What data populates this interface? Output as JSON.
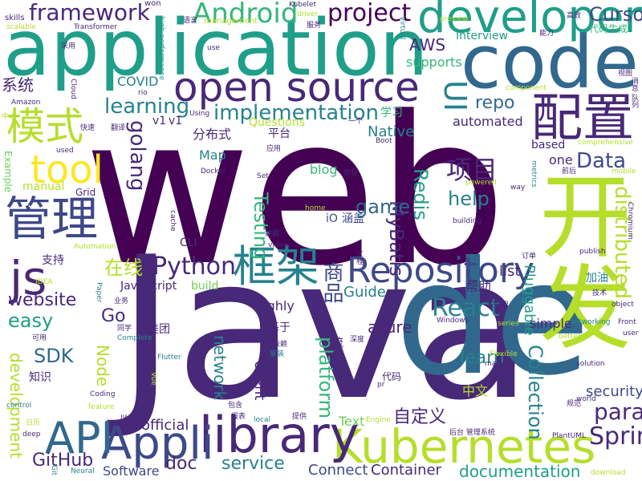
{
  "palette": {
    "deep_purple": "#440154",
    "indigo": "#482878",
    "slate_blue": "#3e4989",
    "blue_teal": "#31688e",
    "teal": "#26828e",
    "sea_green": "#1f9e89",
    "green": "#35b779",
    "lime": "#6ece58",
    "yellow_green": "#b5de2b",
    "yellow": "#fde725"
  },
  "words": [
    {
      "text": "web",
      "color": "deep_purple"
    },
    {
      "text": "Java",
      "color": "indigo"
    },
    {
      "text": "de",
      "color": "blue_teal"
    },
    {
      "text": "application",
      "color": "sea_green"
    },
    {
      "text": "code",
      "color": "blue_teal"
    },
    {
      "text": "开发",
      "color": "yellow_green"
    },
    {
      "text": "developer",
      "color": "sea_green"
    },
    {
      "text": "open source",
      "color": "indigo"
    },
    {
      "text": "配置",
      "color": "indigo"
    },
    {
      "text": "Repository",
      "color": "slate_blue"
    },
    {
      "text": "Kubernetes",
      "color": "yellow_green"
    },
    {
      "text": "library",
      "color": "indigo"
    },
    {
      "text": "Appli",
      "color": "slate_blue"
    },
    {
      "text": "API",
      "color": "blue_teal"
    },
    {
      "text": "管理",
      "color": "slate_blue"
    },
    {
      "text": "框架",
      "color": "teal"
    },
    {
      "text": "js",
      "color": "indigo"
    },
    {
      "text": "模式",
      "color": "yellow_green"
    },
    {
      "text": "tool",
      "color": "yellow"
    },
    {
      "text": "Android",
      "color": "green"
    },
    {
      "text": "framework",
      "color": "indigo"
    },
    {
      "text": "project",
      "color": "deep_purple"
    },
    {
      "text": "Curso",
      "color": "slate_blue"
    },
    {
      "text": "UI",
      "color": "teal"
    },
    {
      "text": "项目",
      "color": "indigo"
    },
    {
      "text": "Python",
      "color": "indigo"
    },
    {
      "text": "React",
      "color": "teal"
    },
    {
      "text": "Spring",
      "color": "indigo"
    },
    {
      "text": "para",
      "color": "indigo"
    },
    {
      "text": "distributed",
      "color": "yellow_green"
    },
    {
      "text": "Data",
      "color": "slate_blue"
    },
    {
      "text": "implementation",
      "color": "teal"
    },
    {
      "text": "learning",
      "color": "teal"
    },
    {
      "text": "golang",
      "color": "indigo"
    },
    {
      "text": "Redis",
      "color": "sea_green"
    },
    {
      "text": "MyBatis",
      "color": "indigo"
    },
    {
      "text": "Testing",
      "color": "green"
    },
    {
      "text": "商品",
      "color": "slate_blue"
    },
    {
      "text": "Collection",
      "color": "teal"
    },
    {
      "text": "platform",
      "color": "green"
    },
    {
      "text": "website",
      "color": "indigo"
    },
    {
      "text": "easy",
      "color": "sea_green"
    },
    {
      "text": "Go",
      "color": "indigo"
    },
    {
      "text": "SDK",
      "color": "blue_teal"
    },
    {
      "text": "在线",
      "color": "yellow_green"
    },
    {
      "text": "game",
      "color": "blue_teal"
    },
    {
      "text": "help",
      "color": "teal"
    },
    {
      "text": "repo",
      "color": "blue_teal"
    },
    {
      "text": "learn",
      "color": "teal"
    },
    {
      "text": "AWS",
      "color": "indigo"
    },
    {
      "text": "Interview",
      "color": "sea_green"
    },
    {
      "text": "supports",
      "color": "green"
    },
    {
      "text": "service",
      "color": "teal"
    },
    {
      "text": "GitHub",
      "color": "indigo"
    },
    {
      "text": "doc",
      "color": "indigo"
    },
    {
      "text": "network",
      "color": "teal"
    },
    {
      "text": "development",
      "color": "yellow_green"
    },
    {
      "text": "azure",
      "color": "indigo"
    },
    {
      "text": "Node",
      "color": "yellow_green"
    },
    {
      "text": "Pluggable",
      "color": "sea_green"
    },
    {
      "text": "security",
      "color": "slate_blue"
    },
    {
      "text": "documentation",
      "color": "sea_green"
    },
    {
      "text": "Connect",
      "color": "slate_blue"
    },
    {
      "text": "Container",
      "color": "indigo"
    },
    {
      "text": "Software",
      "color": "slate_blue"
    },
    {
      "text": "official",
      "color": "indigo"
    },
    {
      "text": "自定义",
      "color": "indigo"
    },
    {
      "text": "系统",
      "color": "indigo"
    },
    {
      "text": "COVID",
      "color": "teal"
    },
    {
      "text": "automated",
      "color": "indigo"
    },
    {
      "text": "Native",
      "color": "teal"
    },
    {
      "text": "Guide",
      "color": "teal"
    },
    {
      "text": "list",
      "color": "indigo"
    },
    {
      "text": "simple",
      "color": "indigo"
    },
    {
      "text": "highly",
      "color": "indigo"
    },
    {
      "text": "JavaScript",
      "color": "indigo"
    },
    {
      "text": "build",
      "color": "lime"
    },
    {
      "text": "client",
      "color": "indigo"
    },
    {
      "text": "帮助",
      "color": "indigo"
    },
    {
      "text": "中文",
      "color": "yellow_green"
    },
    {
      "text": "Text",
      "color": "lime"
    },
    {
      "text": "代码生成",
      "color": "green"
    },
    {
      "text": "分布式",
      "color": "indigo"
    },
    {
      "text": "blog",
      "color": "green"
    },
    {
      "text": "Map",
      "color": "teal"
    },
    {
      "text": "Questions",
      "color": "yellow_green"
    },
    {
      "text": "v1",
      "color": "indigo"
    },
    {
      "text": "v1",
      "color": "indigo"
    },
    {
      "text": "based",
      "color": "indigo"
    },
    {
      "text": "one",
      "color": "indigo"
    },
    {
      "text": "学习",
      "color": "green"
    },
    {
      "text": "平台",
      "color": "indigo"
    },
    {
      "text": "iO",
      "color": "slate_blue"
    },
    {
      "text": "涵盖",
      "color": "slate_blue"
    },
    {
      "text": "CLI",
      "color": "indigo"
    },
    {
      "text": "支持",
      "color": "indigo"
    },
    {
      "text": "加油",
      "color": "teal"
    },
    {
      "text": "manual",
      "color": "yellow_green"
    },
    {
      "text": "Grid",
      "color": "indigo"
    },
    {
      "text": "Example",
      "color": "lime"
    },
    {
      "text": "知识",
      "color": "indigo"
    },
    {
      "text": "美团",
      "color": "indigo"
    },
    {
      "text": "基于",
      "color": "indigo"
    },
    {
      "text": "流程",
      "color": "indigo"
    },
    {
      "text": "代码",
      "color": "indigo"
    },
    {
      "text": "skills",
      "color": "indigo"
    },
    {
      "text": "won",
      "color": "indigo"
    },
    {
      "text": "Transformer",
      "color": "indigo"
    },
    {
      "text": "Kubelet",
      "color": "indigo"
    },
    {
      "text": "driver",
      "color": "yellow_green"
    },
    {
      "text": "Virtual",
      "color": "teal"
    },
    {
      "text": "服务",
      "color": "indigo"
    },
    {
      "text": "management",
      "color": "yellow_green"
    },
    {
      "text": "高效",
      "color": "indigo"
    },
    {
      "text": "能力",
      "color": "indigo"
    },
    {
      "text": "语言",
      "color": "indigo"
    },
    {
      "text": "high performance",
      "color": "sea_green"
    },
    {
      "text": "scalable",
      "color": "yellow_green"
    },
    {
      "text": "采用",
      "color": "indigo"
    },
    {
      "text": "use",
      "color": "indigo"
    },
    {
      "text": "视图",
      "color": "indigo"
    },
    {
      "text": "消息 队列",
      "color": "indigo"
    },
    {
      "text": "Amazon",
      "color": "indigo"
    },
    {
      "text": "Cloud",
      "color": "indigo"
    },
    {
      "text": "rio",
      "color": "indigo"
    },
    {
      "text": "component",
      "color": "yellow_green"
    },
    {
      "text": "comprehensive",
      "color": "yellow_green"
    },
    {
      "text": "中心",
      "color": "yellow_green"
    },
    {
      "text": "快速",
      "color": "indigo"
    },
    {
      "text": "翻译",
      "color": "indigo"
    },
    {
      "text": "Using",
      "color": "indigo"
    },
    {
      "text": "一个",
      "color": "indigo"
    },
    {
      "text": "Boot",
      "color": "indigo"
    },
    {
      "text": "used",
      "color": "indigo"
    },
    {
      "text": "应用",
      "color": "indigo"
    },
    {
      "text": "Docker",
      "color": "indigo"
    },
    {
      "text": "依存",
      "color": "indigo"
    },
    {
      "text": "Set",
      "color": "indigo"
    },
    {
      "text": "powered",
      "color": "yellow_green"
    },
    {
      "text": "way",
      "color": "indigo"
    },
    {
      "text": "metrics",
      "color": "teal"
    },
    {
      "text": "mobile",
      "color": "yellow_green"
    },
    {
      "text": "前后",
      "color": "indigo"
    },
    {
      "text": "cache",
      "color": "indigo"
    },
    {
      "text": "home",
      "color": "yellow_green"
    },
    {
      "text": "数据",
      "color": "indigo"
    },
    {
      "text": "building",
      "color": "indigo"
    },
    {
      "text": "Chromium",
      "color": "indigo"
    },
    {
      "text": "video",
      "color": "indigo"
    },
    {
      "text": "publish",
      "color": "indigo"
    },
    {
      "text": "订单",
      "color": "indigo"
    },
    {
      "text": "Automation",
      "color": "yellow_green"
    },
    {
      "text": "IDEA",
      "color": "yellow_green"
    },
    {
      "text": "Paper",
      "color": "teal"
    },
    {
      "text": "deploy",
      "color": "indigo"
    },
    {
      "text": "技术",
      "color": "indigo"
    },
    {
      "text": "step",
      "color": "indigo"
    },
    {
      "text": "object",
      "color": "indigo"
    },
    {
      "text": "networking",
      "color": "teal"
    },
    {
      "text": "Front",
      "color": "indigo"
    },
    {
      "text": "user",
      "color": "indigo"
    },
    {
      "text": "Windows",
      "color": "indigo"
    },
    {
      "text": "series",
      "color": "yellow_green"
    },
    {
      "text": "better",
      "color": "yellow_green"
    },
    {
      "text": "同学",
      "color": "indigo"
    },
    {
      "text": "可用",
      "color": "indigo"
    },
    {
      "text": "Complete",
      "color": "teal"
    },
    {
      "text": "深度",
      "color": "indigo"
    },
    {
      "text": "依赖",
      "color": "indigo"
    },
    {
      "text": "安装",
      "color": "teal"
    },
    {
      "text": "Flexible",
      "color": "yellow_green"
    },
    {
      "text": "machine",
      "color": "indigo"
    },
    {
      "text": "solution",
      "color": "indigo"
    },
    {
      "text": "Flutter",
      "color": "teal"
    },
    {
      "text": "Vue",
      "color": "yellow_green"
    },
    {
      "text": "Coding",
      "color": "indigo"
    },
    {
      "text": "feature",
      "color": "yellow_green"
    },
    {
      "text": "包含",
      "color": "indigo"
    },
    {
      "text": "pr",
      "color": "indigo"
    },
    {
      "text": "world",
      "color": "indigo"
    },
    {
      "text": "规范",
      "color": "indigo"
    },
    {
      "text": "JWT",
      "color": "indigo"
    },
    {
      "text": "报表",
      "color": "indigo"
    },
    {
      "text": "local",
      "color": "teal"
    },
    {
      "text": "提供",
      "color": "indigo"
    },
    {
      "text": "Engine",
      "color": "yellow_green"
    },
    {
      "text": "后台 管理系统",
      "color": "indigo"
    },
    {
      "text": "PlantUML",
      "color": "indigo"
    },
    {
      "text": "control",
      "color": "teal"
    },
    {
      "text": "日历",
      "color": "yellow_green"
    },
    {
      "text": "deep",
      "color": "indigo"
    },
    {
      "text": "Git",
      "color": "teal"
    },
    {
      "text": "Neural",
      "color": "teal"
    },
    {
      "text": "download",
      "color": "yellow_green"
    },
    {
      "text": "preview",
      "color": "yellow_green"
    },
    {
      "text": "业务",
      "color": "indigo"
    },
    {
      "text": "工程",
      "color": "indigo"
    }
  ]
}
